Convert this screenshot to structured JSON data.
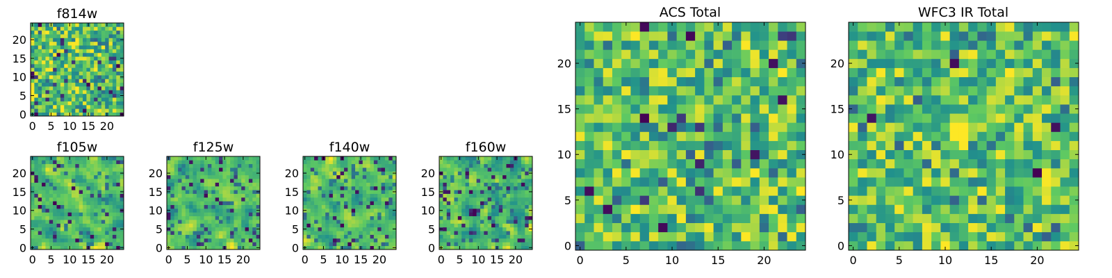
{
  "figure": {
    "colormap": "viridis",
    "colors": {
      "background": "#ffffff",
      "axis": "#000000",
      "viridis_stops": [
        "#440154",
        "#3b528b",
        "#21918c",
        "#5ec962",
        "#fde725"
      ]
    }
  },
  "chart_data": [
    {
      "id": "f814w",
      "type": "heatmap",
      "title": "f814w",
      "grid_size": 25,
      "xlim": [
        -0.5,
        24.5
      ],
      "ylim": [
        -0.5,
        24.5
      ],
      "xticks": [
        0,
        5,
        10,
        15,
        20
      ],
      "yticks": [
        0,
        5,
        10,
        15,
        20
      ],
      "seed": 814,
      "smooth": 0,
      "dark_fraction": 0.05,
      "note": "per-pixel noise values not individually legible; generated pattern"
    },
    {
      "id": "f105w",
      "type": "heatmap",
      "title": "f105w",
      "grid_size": 25,
      "xlim": [
        -0.5,
        24.5
      ],
      "ylim": [
        -0.5,
        24.5
      ],
      "xticks": [
        0,
        5,
        10,
        15,
        20
      ],
      "yticks": [
        0,
        5,
        10,
        15,
        20
      ],
      "seed": 105,
      "smooth": 1,
      "dark_fraction": 0.06
    },
    {
      "id": "f125w",
      "type": "heatmap",
      "title": "f125w",
      "grid_size": 25,
      "xlim": [
        -0.5,
        24.5
      ],
      "ylim": [
        -0.5,
        24.5
      ],
      "xticks": [
        0,
        5,
        10,
        15,
        20
      ],
      "yticks": [
        0,
        5,
        10,
        15,
        20
      ],
      "seed": 125,
      "smooth": 1,
      "dark_fraction": 0.06
    },
    {
      "id": "f140w",
      "type": "heatmap",
      "title": "f140w",
      "grid_size": 25,
      "xlim": [
        -0.5,
        24.5
      ],
      "ylim": [
        -0.5,
        24.5
      ],
      "xticks": [
        0,
        5,
        10,
        15,
        20
      ],
      "yticks": [
        0,
        5,
        10,
        15,
        20
      ],
      "seed": 140,
      "smooth": 1,
      "dark_fraction": 0.06
    },
    {
      "id": "f160w",
      "type": "heatmap",
      "title": "f160w",
      "grid_size": 25,
      "xlim": [
        -0.5,
        24.5
      ],
      "ylim": [
        -0.5,
        24.5
      ],
      "xticks": [
        0,
        5,
        10,
        15,
        20
      ],
      "yticks": [
        0,
        5,
        10,
        15,
        20
      ],
      "seed": 160,
      "smooth": 1,
      "dark_fraction": 0.06
    },
    {
      "id": "acs_total",
      "type": "heatmap",
      "title": "ACS Total",
      "grid_size": 25,
      "xlim": [
        -0.5,
        24.5
      ],
      "ylim": [
        -0.5,
        24.5
      ],
      "xticks": [
        0,
        5,
        10,
        15,
        20
      ],
      "yticks": [
        0,
        5,
        10,
        15,
        20
      ],
      "seed": 2001,
      "smooth": 0,
      "dark_fraction": 0.025
    },
    {
      "id": "wfc3_ir_total",
      "type": "heatmap",
      "title": "WFC3 IR Total",
      "grid_size": 25,
      "xlim": [
        -0.5,
        24.5
      ],
      "ylim": [
        -0.5,
        24.5
      ],
      "xticks": [
        0,
        5,
        10,
        15,
        20
      ],
      "yticks": [
        0,
        5,
        10,
        15,
        20
      ],
      "seed": 3003,
      "smooth": 0,
      "dark_fraction": 0.02,
      "bright_block": {
        "x": [
          11,
          12
        ],
        "y": [
          12,
          13
        ]
      }
    }
  ]
}
